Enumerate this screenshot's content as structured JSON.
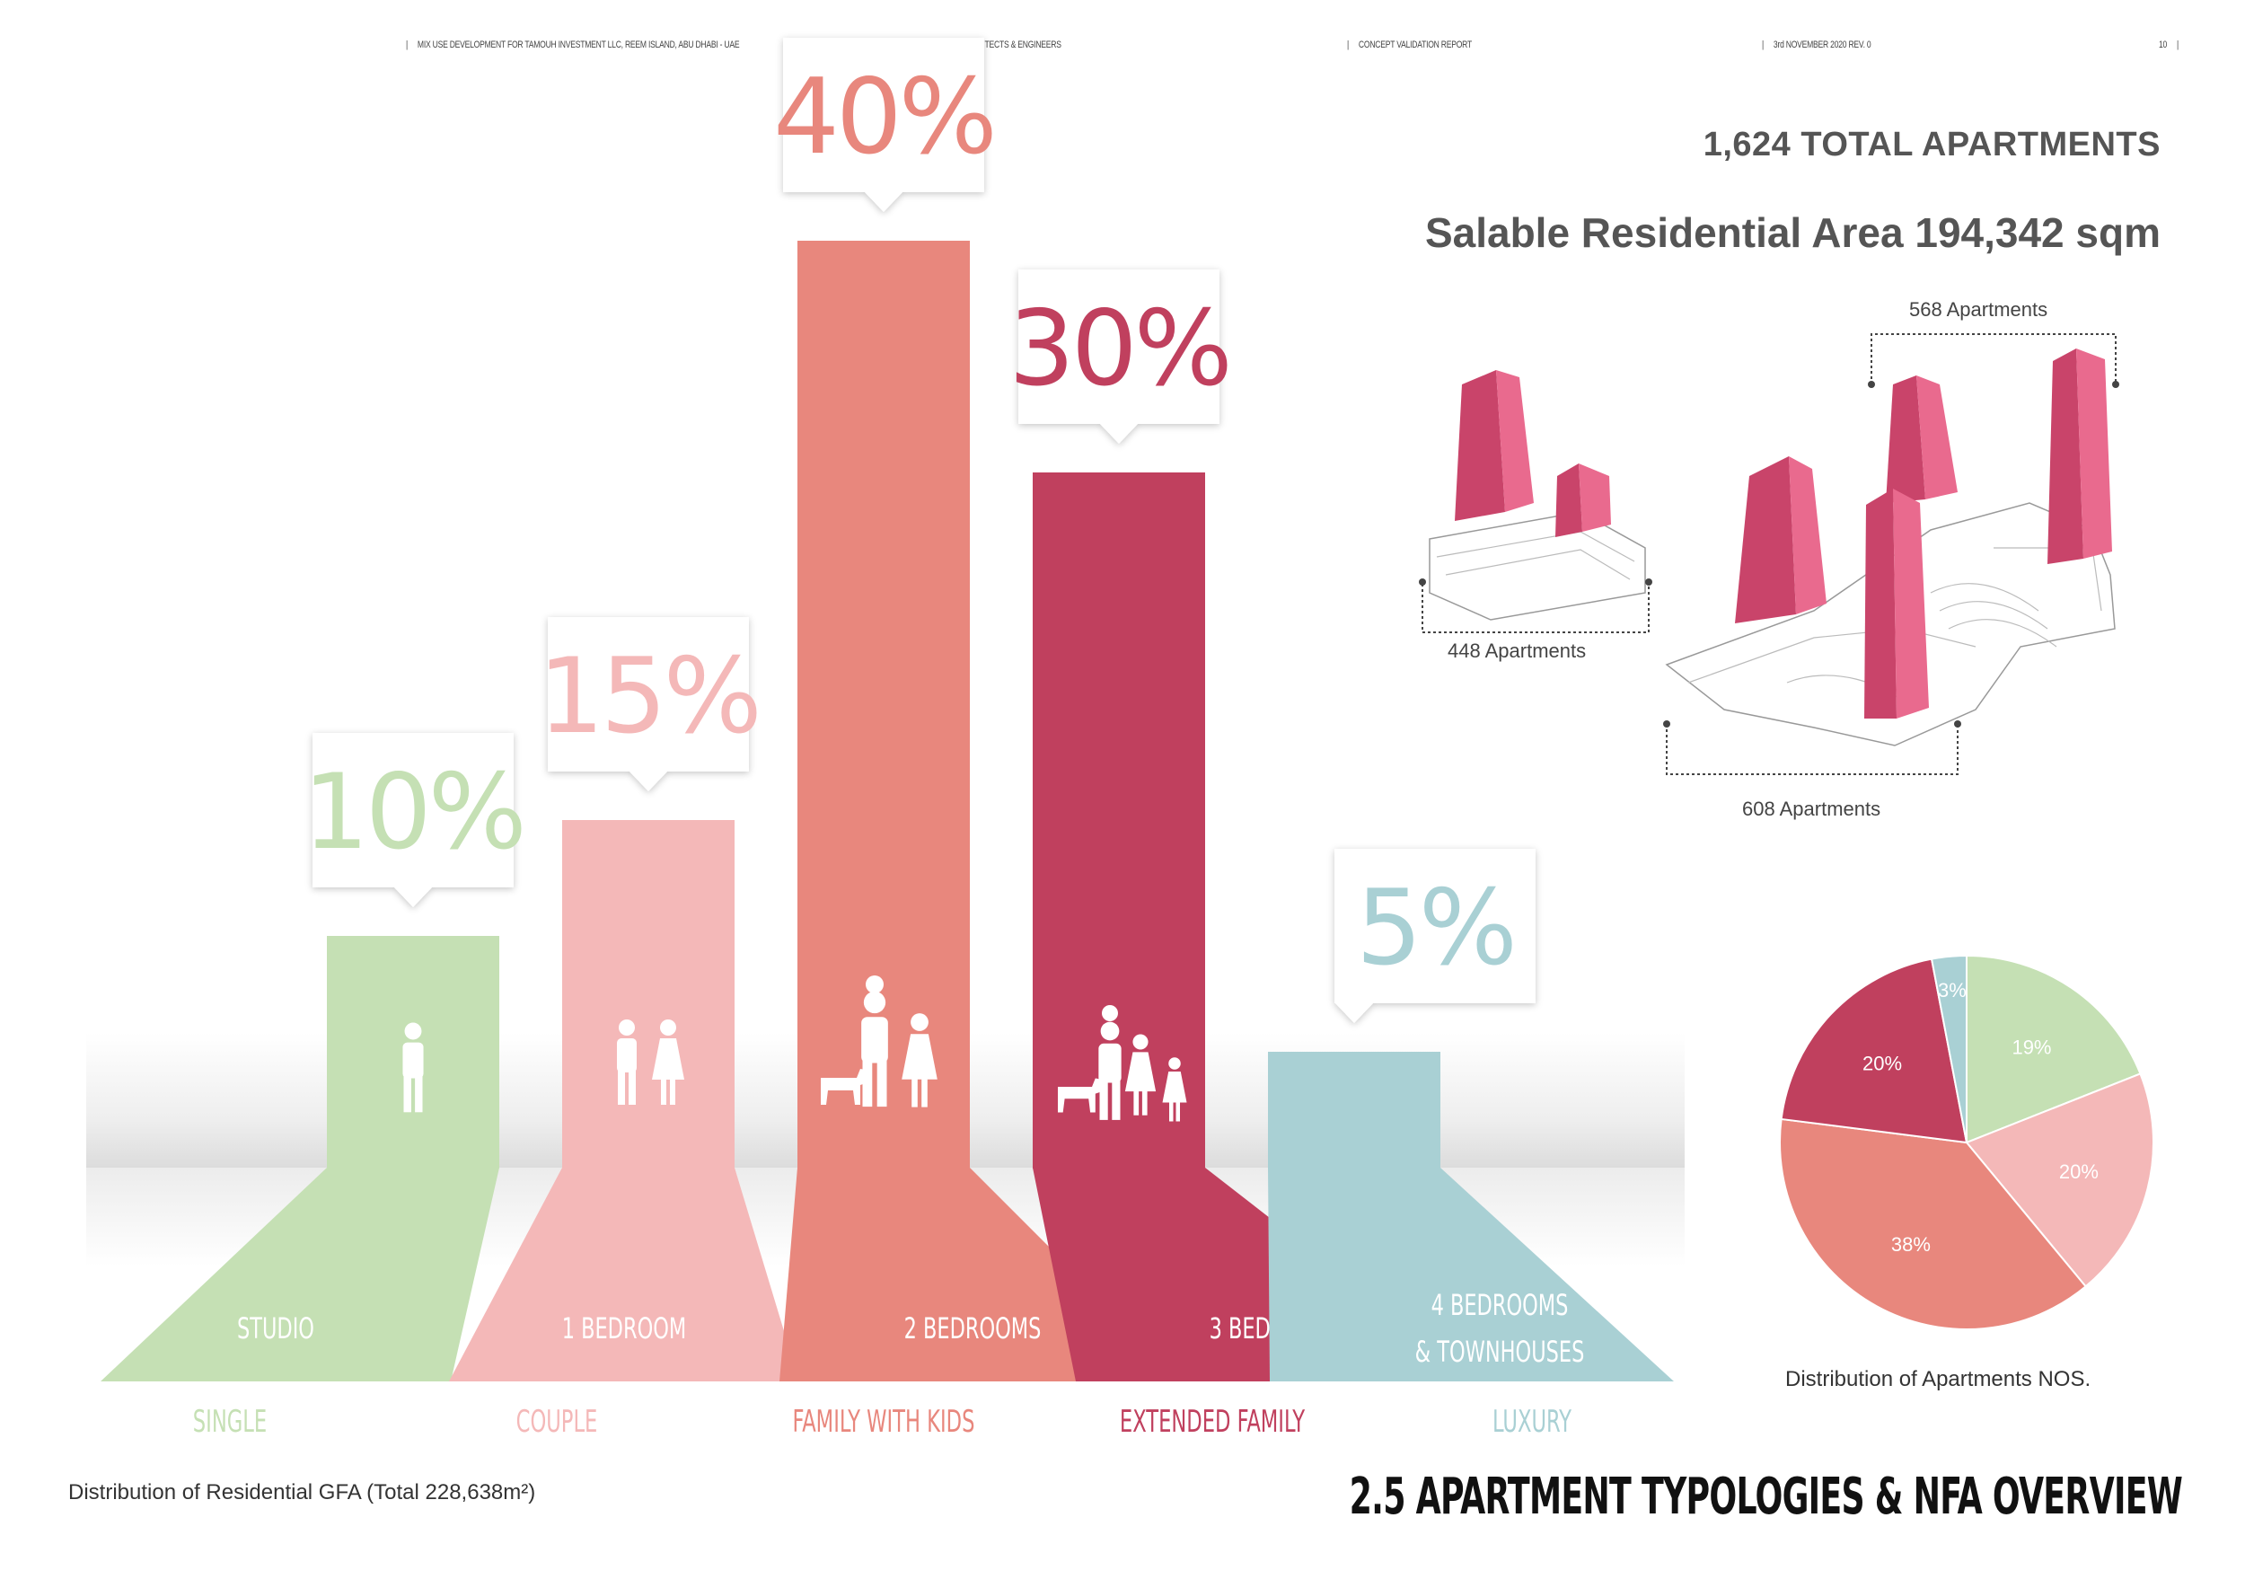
{
  "header": {
    "project": "MIX USE DEVELOPMENT FOR TAMOUH INVESTMENT LLC, REEM ISLAND, ABU DHABI - UAE",
    "firm": "BEAD ARCHITECTS & ENGINEERS",
    "report": "CONCEPT VALIDATION REPORT",
    "date": "3rd NOVEMBER 2020 REV. 0",
    "page": "10"
  },
  "summary": {
    "total_apartments": "1,624 TOTAL APARTMENTS",
    "salable_area": "Salable Residential Area 194,342 sqm"
  },
  "buildings": {
    "label_568": "568 Apartments",
    "label_448": "448 Apartments",
    "label_608": "608 Apartments"
  },
  "captions": {
    "gfa": "Distribution of Residential GFA (Total 228,638m²)",
    "pie": "Distribution of Apartments NOS.",
    "section_title": "2.5 APARTMENT TYPOLOGIES & NFA OVERVIEW"
  },
  "colors": {
    "studio": "#c5e0b4",
    "one_bed": "#f4b8b8",
    "two_bed": "#e8877d",
    "three_bed": "#c0405e",
    "four_bed": "#a9d0d4",
    "building": "#d9486e"
  },
  "chart_data": [
    {
      "type": "bar",
      "categories": [
        "STUDIO",
        "1 BEDROOM",
        "2 BEDROOMS",
        "3 BEDROOMS",
        "4 BEDROOMS & TOWNHOUSES"
      ],
      "sublabels": [
        "SINGLE",
        "COUPLE",
        "FAMILY WITH KIDS",
        "EXTENDED FAMILY",
        "LUXURY"
      ],
      "values": [
        10,
        15,
        40,
        30,
        5
      ],
      "value_labels": [
        "10%",
        "15%",
        "40%",
        "30%",
        "5%"
      ],
      "icons": [
        "single-person-icon",
        "couple-icon",
        "family-with-kids-icon",
        "extended-family-icon",
        ""
      ],
      "colors": [
        "#c5e0b4",
        "#f4b8b8",
        "#e8877d",
        "#c0405e",
        "#a9d0d4"
      ],
      "category_line1": [
        "STUDIO",
        "1 BEDROOM",
        "2 BEDROOMS",
        "3 BEDROOMS",
        "4 BEDROOMS"
      ],
      "category_line2": [
        "",
        "",
        "",
        "",
        "& TOWNHOUSES"
      ]
    },
    {
      "type": "pie",
      "categories": [
        "STUDIO",
        "1 BEDROOM",
        "2 BEDROOMS",
        "3 BEDROOMS",
        "4 BEDROOMS & TOWNHOUSES"
      ],
      "values": [
        19,
        20,
        38,
        20,
        3
      ],
      "value_labels": [
        "19%",
        "20%",
        "38%",
        "20%",
        "3%"
      ],
      "colors": [
        "#c5e0b4",
        "#f4b8b8",
        "#e8877d",
        "#c0405e",
        "#a9d0d4"
      ]
    }
  ]
}
